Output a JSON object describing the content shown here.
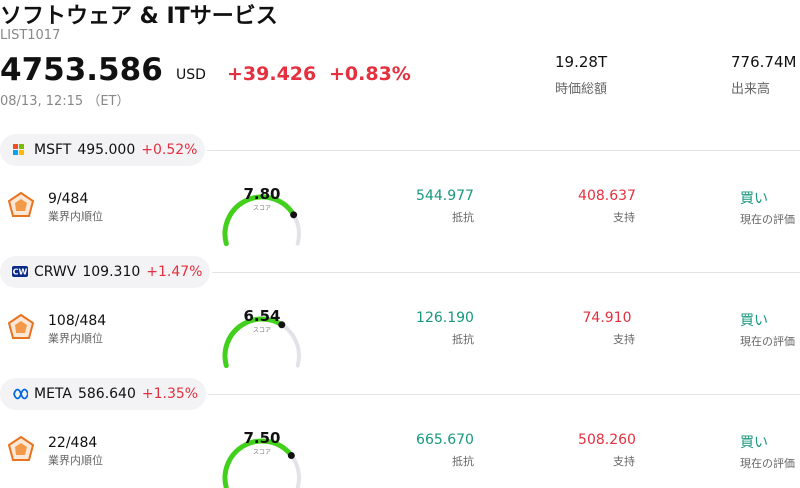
{
  "header": {
    "title": "ソフトウェア & ITサービス",
    "code": "LIST1017",
    "price": "4753.586",
    "currency": "USD",
    "change": "+39.426",
    "change_pct": "+0.83%",
    "datetime": "08/13, 12:15 （ET）",
    "market_cap": "19.28T",
    "market_cap_label": "時価総額",
    "volume": "776.74M",
    "volume_label": "出来高"
  },
  "stocks": [
    {
      "ticker": "MSFT",
      "price": "495.000",
      "change": "+0.52%",
      "rank": "9/484",
      "rank_label": "業界内順位",
      "score": "7.80",
      "score_label": "スコア",
      "resistance": "544.977",
      "resistance_label": "抵抗",
      "support": "408.637",
      "support_label": "支持",
      "rating": "買い",
      "rating_label": "現在の評価"
    },
    {
      "ticker": "CRWV",
      "price": "109.310",
      "change": "+1.47%",
      "rank": "108/484",
      "rank_label": "業界内順位",
      "score": "6.54",
      "score_label": "スコア",
      "resistance": "126.190",
      "resistance_label": "抵抗",
      "support": "74.910",
      "support_label": "支持",
      "rating": "買い",
      "rating_label": "現在の評価"
    },
    {
      "ticker": "META",
      "price": "586.640",
      "change": "+1.35%",
      "rank": "22/484",
      "rank_label": "業界内順位",
      "score": "7.50",
      "score_label": "スコア",
      "resistance": "665.670",
      "resistance_label": "抵抗",
      "support": "508.260",
      "support_label": "支持",
      "rating": "買い",
      "rating_label": "現在の評価"
    }
  ]
}
